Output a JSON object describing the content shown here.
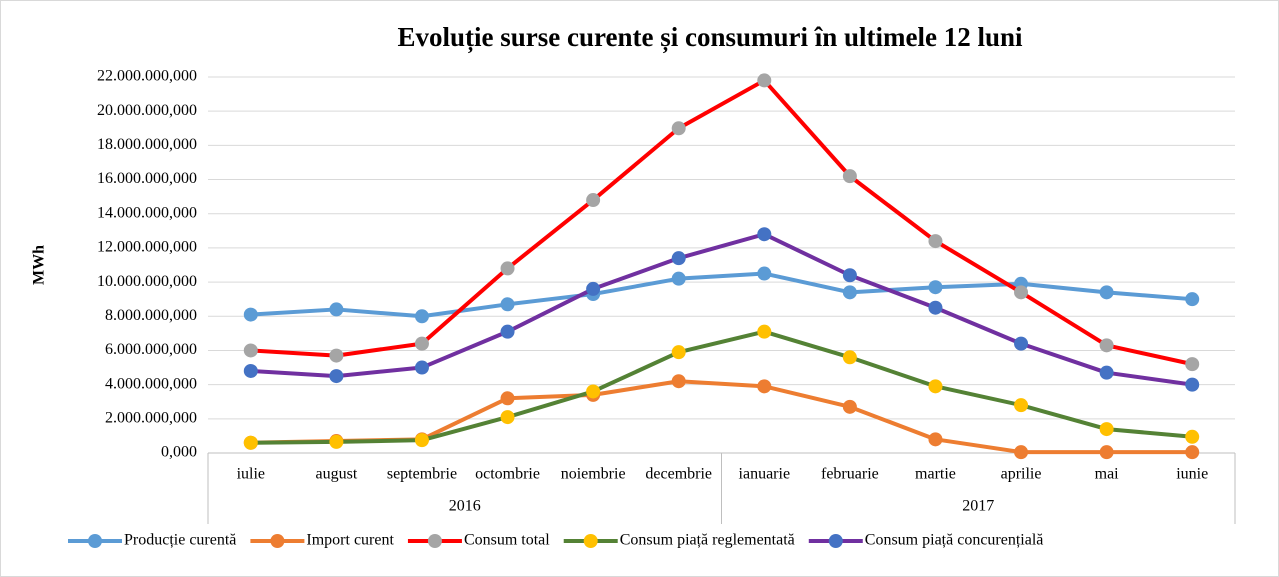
{
  "chart_data": {
    "type": "line",
    "title": "Evoluție surse curente și consumuri în ultimele 12 luni",
    "y_label": "MWh",
    "categories": [
      "iulie",
      "august",
      "septembrie",
      "octombrie",
      "noiembrie",
      "decembrie",
      "ianuarie",
      "februarie",
      "martie",
      "aprilie",
      "mai",
      "iunie"
    ],
    "x_groups": [
      "2016",
      "2017"
    ],
    "ylim": [
      0,
      22000000
    ],
    "yticks": [
      {
        "value": 0,
        "label": "0,000"
      },
      {
        "value": 2000000,
        "label": "2.000.000,000"
      },
      {
        "value": 4000000,
        "label": "4.000.000,000"
      },
      {
        "value": 6000000,
        "label": "6.000.000,000"
      },
      {
        "value": 8000000,
        "label": "8.000.000,000"
      },
      {
        "value": 10000000,
        "label": "10.000.000,000"
      },
      {
        "value": 12000000,
        "label": "12.000.000,000"
      },
      {
        "value": 14000000,
        "label": "14.000.000,000"
      },
      {
        "value": 16000000,
        "label": "16.000.000,000"
      },
      {
        "value": 18000000,
        "label": "18.000.000,000"
      },
      {
        "value": 20000000,
        "label": "20.000.000,000"
      },
      {
        "value": 22000000,
        "label": "22.000.000,000"
      }
    ],
    "grid": true,
    "legend": "bottom",
    "series": [
      {
        "name": "Producție curentă",
        "color": "#5b9bd5",
        "marker_color": "#5b9bd5",
        "values": [
          8100000,
          8400000,
          8000000,
          8700000,
          9300000,
          10200000,
          10500000,
          9400000,
          9700000,
          9900000,
          9400000,
          9000000
        ]
      },
      {
        "name": "Import curent",
        "color": "#ed7d31",
        "marker_color": "#ed7d31",
        "values": [
          600000,
          700000,
          800000,
          3200000,
          3400000,
          4200000,
          3900000,
          2700000,
          800000,
          50000,
          50000,
          50000
        ]
      },
      {
        "name": "Consum total",
        "color": "#ff0000",
        "marker_color": "#a5a5a5",
        "values": [
          6000000,
          5700000,
          6400000,
          10800000,
          14800000,
          19000000,
          21800000,
          16200000,
          12400000,
          9400000,
          6300000,
          5200000
        ]
      },
      {
        "name": "Consum piață reglementată",
        "color": "#548235",
        "marker_color": "#ffc000",
        "values": [
          600000,
          650000,
          750000,
          2100000,
          3600000,
          5900000,
          7100000,
          5600000,
          3900000,
          2800000,
          1400000,
          950000
        ]
      },
      {
        "name": "Consum piață concurențială",
        "color": "#7030a0",
        "marker_color": "#4472c4",
        "values": [
          4800000,
          4500000,
          5000000,
          7100000,
          9600000,
          11400000,
          12800000,
          10400000,
          8500000,
          6400000,
          4700000,
          4000000
        ]
      }
    ]
  }
}
